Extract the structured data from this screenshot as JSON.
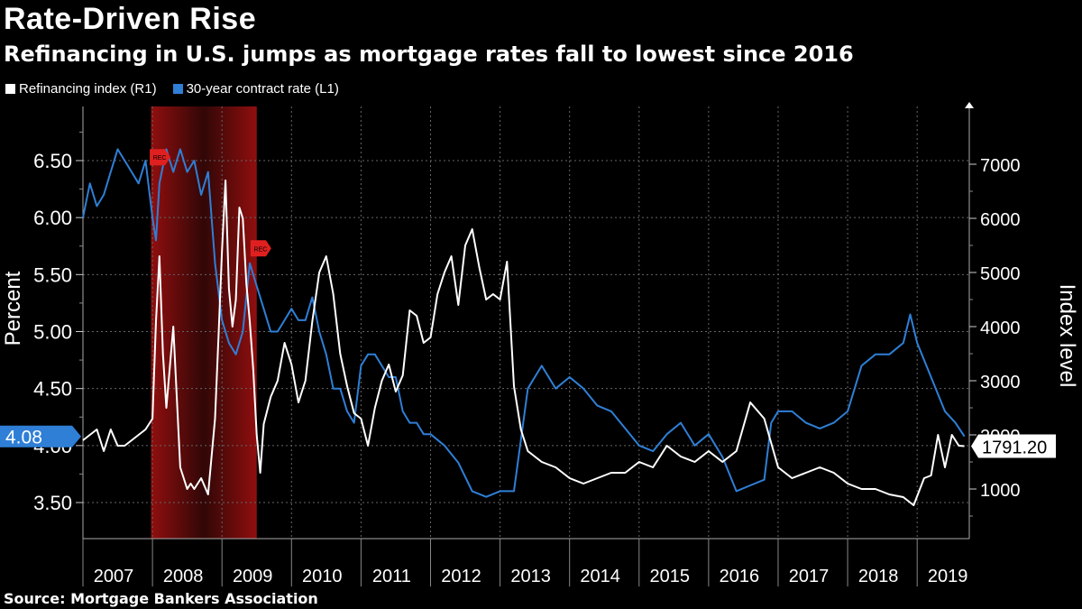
{
  "header": {
    "title": "Rate-Driven Rise",
    "subtitle": "Refinancing in U.S. jumps as mortgage rates fall to lowest since 2016"
  },
  "legend": {
    "items": [
      {
        "label": "Refinancing index (R1)",
        "color": "#ffffff"
      },
      {
        "label": "30-year contract rate (L1)",
        "color": "#2f7fd6"
      }
    ]
  },
  "footer": {
    "source": "Source: Mortgage Bankers Association"
  },
  "chart_data": {
    "type": "line",
    "title": "Rate-Driven Rise",
    "subtitle": "Refinancing in U.S. jumps as mortgage rates fall to lowest since 2016",
    "ylabel_left": "Percent",
    "ylabel_right": "Index level",
    "xlim": [
      2007.0,
      2019.75
    ],
    "ylim_left": [
      3.2,
      7.0
    ],
    "ylim_right": [
      200,
      8000
    ],
    "left_ticks": [
      "3.50",
      "4.00",
      "4.50",
      "5.00",
      "5.50",
      "6.00",
      "6.50"
    ],
    "left_tick_values": [
      3.5,
      4.0,
      4.5,
      5.0,
      5.5,
      6.0,
      6.5
    ],
    "right_ticks": [
      "1000",
      "2000",
      "3000",
      "4000",
      "5000",
      "6000",
      "7000"
    ],
    "right_tick_values": [
      1000,
      2000,
      3000,
      4000,
      5000,
      6000,
      7000
    ],
    "x_tick_labels": [
      "2007",
      "2008",
      "2009",
      "2010",
      "2011",
      "2012",
      "2013",
      "2014",
      "2015",
      "2016",
      "2017",
      "2018",
      "2019"
    ],
    "x_tick_values": [
      2007,
      2008,
      2009,
      2010,
      2011,
      2012,
      2013,
      2014,
      2015,
      2016,
      2017,
      2018,
      2019
    ],
    "recession": {
      "start": 2007.98,
      "end": 2009.5,
      "label": "REC"
    },
    "series": [
      {
        "name": "Refinancing index (R1)",
        "axis": "right",
        "color": "#ffffff",
        "last_value_label": "1791.20",
        "x": [
          2007.0,
          2007.1,
          2007.2,
          2007.3,
          2007.4,
          2007.5,
          2007.6,
          2007.7,
          2007.8,
          2007.9,
          2008.0,
          2008.05,
          2008.1,
          2008.15,
          2008.2,
          2008.3,
          2008.4,
          2008.5,
          2008.55,
          2008.6,
          2008.7,
          2008.8,
          2008.9,
          2008.95,
          2009.0,
          2009.05,
          2009.1,
          2009.15,
          2009.2,
          2009.25,
          2009.3,
          2009.35,
          2009.4,
          2009.45,
          2009.5,
          2009.55,
          2009.6,
          2009.7,
          2009.8,
          2009.9,
          2010.0,
          2010.1,
          2010.2,
          2010.3,
          2010.4,
          2010.5,
          2010.6,
          2010.7,
          2010.8,
          2010.9,
          2011.0,
          2011.1,
          2011.2,
          2011.3,
          2011.4,
          2011.5,
          2011.6,
          2011.7,
          2011.8,
          2011.9,
          2012.0,
          2012.1,
          2012.2,
          2012.3,
          2012.4,
          2012.5,
          2012.6,
          2012.7,
          2012.8,
          2012.9,
          2013.0,
          2013.1,
          2013.2,
          2013.3,
          2013.4,
          2013.5,
          2013.6,
          2013.8,
          2014.0,
          2014.2,
          2014.4,
          2014.6,
          2014.8,
          2015.0,
          2015.2,
          2015.4,
          2015.6,
          2015.8,
          2016.0,
          2016.2,
          2016.4,
          2016.6,
          2016.8,
          2017.0,
          2017.2,
          2017.4,
          2017.6,
          2017.8,
          2018.0,
          2018.2,
          2018.4,
          2018.6,
          2018.8,
          2018.95,
          2019.1,
          2019.2,
          2019.3,
          2019.4,
          2019.5,
          2019.6,
          2019.68
        ],
        "values": [
          1900,
          2000,
          2100,
          1700,
          2100,
          1800,
          1800,
          1900,
          2000,
          2100,
          2300,
          4100,
          5300,
          3500,
          2500,
          4000,
          1400,
          1000,
          1100,
          1000,
          1200,
          900,
          2300,
          3800,
          5400,
          6700,
          4700,
          4000,
          4500,
          6200,
          6000,
          4800,
          4100,
          3200,
          2000,
          1300,
          2200,
          2700,
          3000,
          3700,
          3300,
          2600,
          3000,
          4100,
          5000,
          5300,
          4600,
          3500,
          2900,
          2400,
          2300,
          1800,
          2500,
          3000,
          3300,
          2800,
          3100,
          4300,
          4200,
          3700,
          3800,
          4600,
          5000,
          5300,
          4400,
          5500,
          5800,
          5100,
          4500,
          4600,
          4500,
          5200,
          2900,
          2100,
          1700,
          1600,
          1500,
          1400,
          1200,
          1100,
          1200,
          1300,
          1300,
          1500,
          1400,
          1800,
          1600,
          1500,
          1700,
          1500,
          1700,
          2600,
          2300,
          1400,
          1200,
          1300,
          1400,
          1300,
          1100,
          1000,
          1000,
          900,
          850,
          700,
          1200,
          1250,
          2000,
          1400,
          2000,
          1800,
          1791
        ]
      },
      {
        "name": "30-year contract rate (L1)",
        "axis": "left",
        "color": "#2f7fd6",
        "last_value_label": "4.08",
        "x": [
          2007.0,
          2007.1,
          2007.2,
          2007.3,
          2007.4,
          2007.5,
          2007.6,
          2007.7,
          2007.8,
          2007.9,
          2008.0,
          2008.05,
          2008.1,
          2008.2,
          2008.3,
          2008.4,
          2008.5,
          2008.6,
          2008.7,
          2008.8,
          2008.9,
          2009.0,
          2009.1,
          2009.2,
          2009.3,
          2009.4,
          2009.5,
          2009.6,
          2009.7,
          2009.8,
          2009.9,
          2010.0,
          2010.1,
          2010.2,
          2010.3,
          2010.4,
          2010.5,
          2010.6,
          2010.7,
          2010.8,
          2010.9,
          2011.0,
          2011.1,
          2011.2,
          2011.3,
          2011.4,
          2011.5,
          2011.6,
          2011.7,
          2011.8,
          2011.9,
          2012.0,
          2012.2,
          2012.4,
          2012.6,
          2012.8,
          2013.0,
          2013.2,
          2013.4,
          2013.5,
          2013.6,
          2013.8,
          2014.0,
          2014.2,
          2014.4,
          2014.6,
          2014.8,
          2015.0,
          2015.2,
          2015.4,
          2015.6,
          2015.8,
          2016.0,
          2016.2,
          2016.4,
          2016.6,
          2016.8,
          2016.9,
          2017.0,
          2017.2,
          2017.4,
          2017.6,
          2017.8,
          2018.0,
          2018.2,
          2018.4,
          2018.6,
          2018.8,
          2018.9,
          2019.0,
          2019.2,
          2019.4,
          2019.55,
          2019.68
        ],
        "values": [
          6.0,
          6.3,
          6.1,
          6.2,
          6.4,
          6.6,
          6.5,
          6.4,
          6.3,
          6.5,
          6.0,
          5.8,
          6.3,
          6.6,
          6.4,
          6.6,
          6.4,
          6.5,
          6.2,
          6.4,
          5.6,
          5.1,
          4.9,
          4.8,
          5.0,
          5.6,
          5.4,
          5.2,
          5.0,
          5.0,
          5.1,
          5.2,
          5.1,
          5.1,
          5.3,
          5.0,
          4.8,
          4.5,
          4.5,
          4.3,
          4.2,
          4.7,
          4.8,
          4.8,
          4.7,
          4.6,
          4.6,
          4.3,
          4.2,
          4.2,
          4.1,
          4.1,
          4.0,
          3.85,
          3.6,
          3.55,
          3.6,
          3.6,
          4.5,
          4.6,
          4.7,
          4.5,
          4.6,
          4.5,
          4.35,
          4.3,
          4.15,
          4.0,
          3.95,
          4.1,
          4.2,
          4.0,
          4.1,
          3.9,
          3.6,
          3.65,
          3.7,
          4.2,
          4.3,
          4.3,
          4.2,
          4.15,
          4.2,
          4.3,
          4.7,
          4.8,
          4.8,
          4.9,
          5.15,
          4.9,
          4.6,
          4.3,
          4.2,
          4.08
        ]
      }
    ]
  }
}
